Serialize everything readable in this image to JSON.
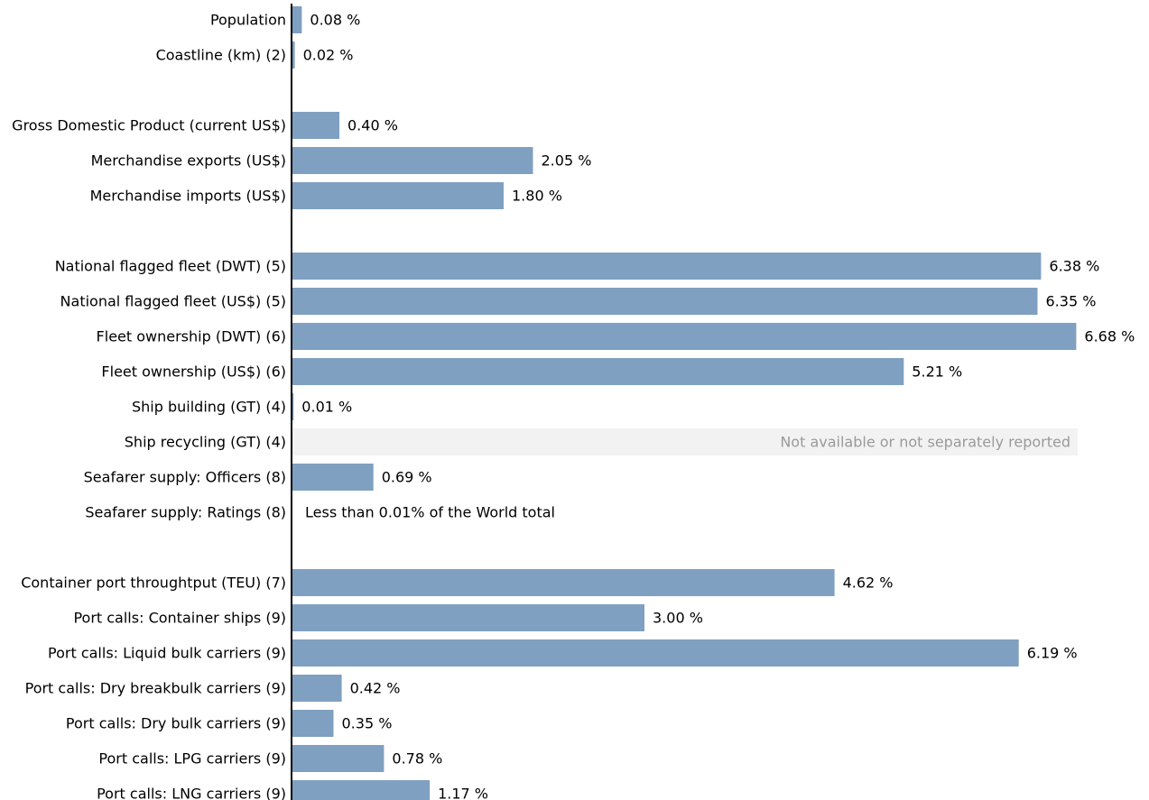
{
  "chart_data": {
    "type": "bar",
    "orientation": "horizontal",
    "unit": "%",
    "xlim": [
      0,
      6.68
    ],
    "grid": false,
    "legend": "none",
    "colors": {
      "bar": "#7fa0c0",
      "not_available_band": "#f2f2f2",
      "not_available_text": "#9a9a9a",
      "axis": "#000000"
    },
    "groups": [
      {
        "rows": [
          {
            "label": "Population",
            "value": 0.08,
            "value_label": "0.08 %"
          },
          {
            "label": "Coastline (km) (2)",
            "value": 0.02,
            "value_label": "0.02 %"
          }
        ]
      },
      {
        "rows": [
          {
            "label": "Gross Domestic Product (current US$)",
            "value": 0.4,
            "value_label": "0.40 %"
          },
          {
            "label": "Merchandise exports (US$)",
            "value": 2.05,
            "value_label": "2.05 %"
          },
          {
            "label": "Merchandise imports (US$)",
            "value": 1.8,
            "value_label": "1.80 %"
          }
        ]
      },
      {
        "rows": [
          {
            "label": "National flagged fleet (DWT) (5)",
            "value": 6.38,
            "value_label": "6.38 %"
          },
          {
            "label": "National flagged fleet (US$) (5)",
            "value": 6.35,
            "value_label": "6.35 %"
          },
          {
            "label": "Fleet ownership (DWT) (6)",
            "value": 6.68,
            "value_label": "6.68 %"
          },
          {
            "label": "Fleet ownership (US$) (6)",
            "value": 5.21,
            "value_label": "5.21 %"
          },
          {
            "label": "Ship building (GT) (4)",
            "value": 0.01,
            "value_label": "0.01 %"
          },
          {
            "label": "Ship recycling (GT) (4)",
            "value": null,
            "status": "not_available",
            "note": "Not available or not separately reported"
          },
          {
            "label": "Seafarer supply: Officers (8)",
            "value": 0.69,
            "value_label": "0.69 %"
          },
          {
            "label": "Seafarer supply: Ratings (8)",
            "value": null,
            "status": "less_than",
            "note": "Less than 0.01% of the World total"
          }
        ]
      },
      {
        "rows": [
          {
            "label": "Container port throughtput (TEU) (7)",
            "value": 4.62,
            "value_label": "4.62 %"
          },
          {
            "label": "Port calls: Container ships (9)",
            "value": 3.0,
            "value_label": "3.00 %"
          },
          {
            "label": "Port calls: Liquid bulk carriers (9)",
            "value": 6.19,
            "value_label": "6.19 %"
          },
          {
            "label": "Port calls: Dry breakbulk carriers (9)",
            "value": 0.42,
            "value_label": "0.42 %"
          },
          {
            "label": "Port calls: Dry bulk carriers (9)",
            "value": 0.35,
            "value_label": "0.35 %"
          },
          {
            "label": "Port calls: LPG carriers (9)",
            "value": 0.78,
            "value_label": "0.78 %"
          },
          {
            "label": "Port calls: LNG carriers (9)",
            "value": 1.17,
            "value_label": "1.17 %"
          }
        ]
      }
    ]
  }
}
